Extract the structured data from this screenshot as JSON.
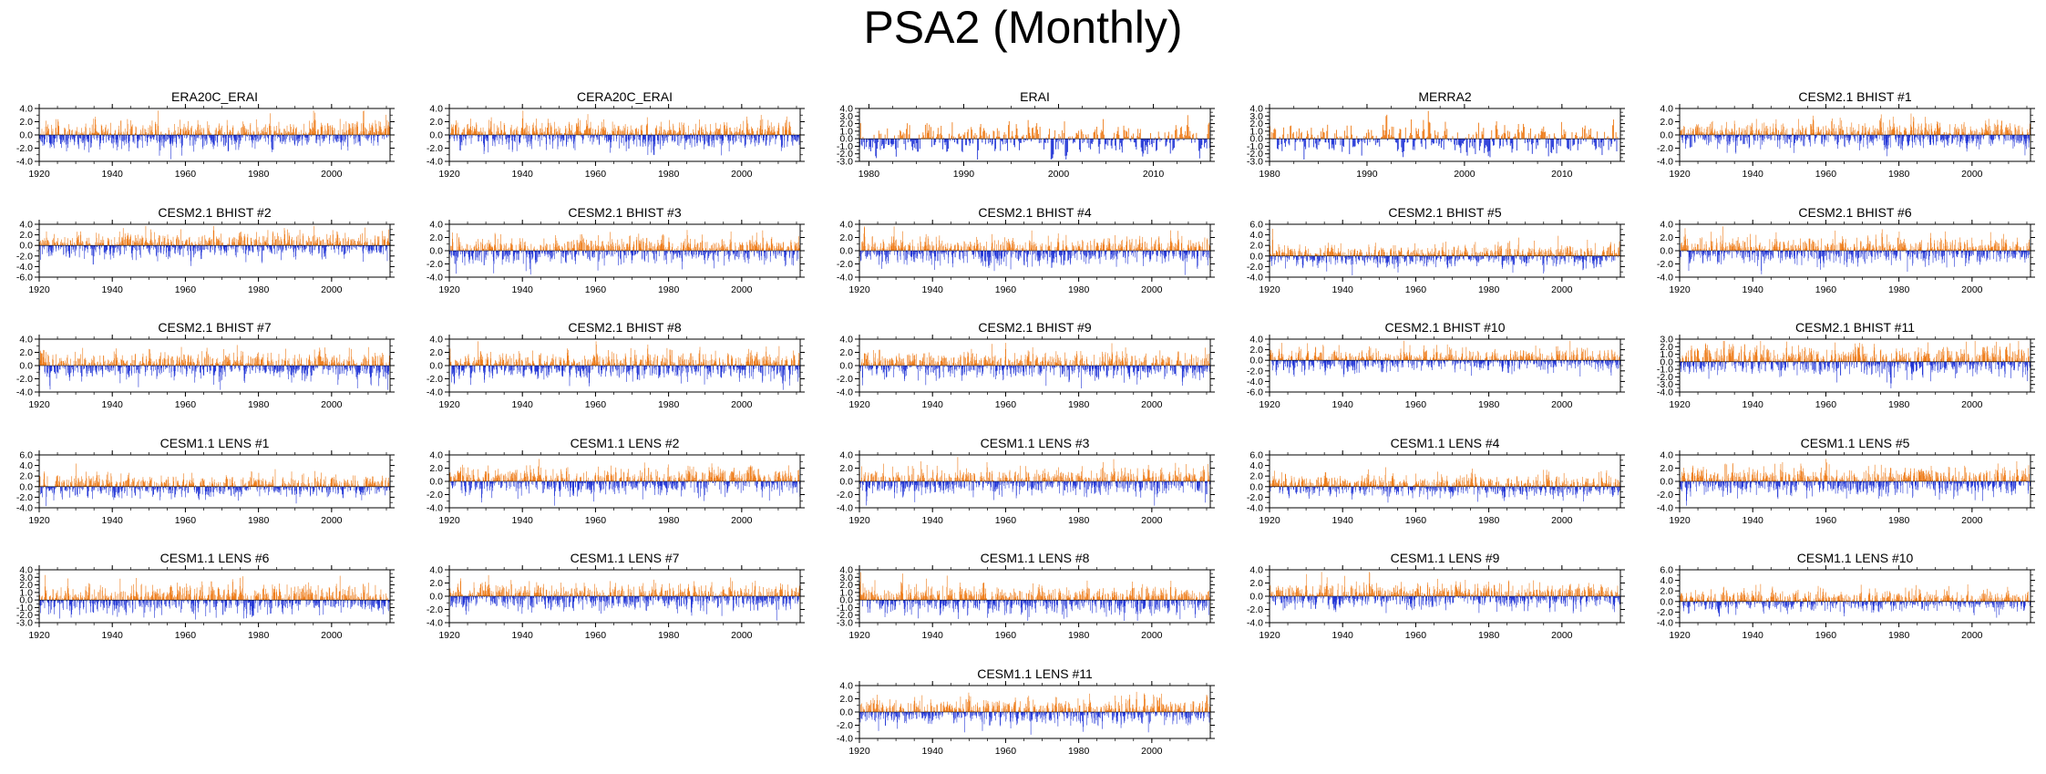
{
  "title": "PSA2 (Monthly)",
  "colors": {
    "positive": "#ee7a16",
    "negative": "#1f33d6",
    "axis": "#000000",
    "background": "#ffffff"
  },
  "chart_data": [
    {
      "type": "bar",
      "title": "ERA20C_ERAI",
      "x_start": 1920,
      "x_end": 2015,
      "xticks": [
        1920,
        1940,
        1960,
        1980,
        2000
      ],
      "yticks": [
        "-4.0",
        "-2.0",
        "0.0",
        "2.0",
        "4.0"
      ],
      "ylim": [
        -4,
        4
      ],
      "amplitude": 1.5,
      "seed": 11
    },
    {
      "type": "bar",
      "title": "CERA20C_ERAI",
      "x_start": 1920,
      "x_end": 2015,
      "xticks": [
        1920,
        1940,
        1960,
        1980,
        2000
      ],
      "yticks": [
        "-4.0",
        "-2.0",
        "0.0",
        "2.0",
        "4.0"
      ],
      "ylim": [
        -4,
        4
      ],
      "amplitude": 1.5,
      "seed": 23
    },
    {
      "type": "bar",
      "title": "ERAI",
      "x_start": 1979,
      "x_end": 2015,
      "xticks": [
        1980,
        1990,
        2000,
        2010
      ],
      "yticks": [
        "-3.0",
        "-2.0",
        "-1.0",
        "0.0",
        "1.0",
        "2.0",
        "3.0",
        "4.0"
      ],
      "ylim": [
        -3,
        4
      ],
      "amplitude": 1.6,
      "seed": 37
    },
    {
      "type": "bar",
      "title": "MERRA2",
      "x_start": 1980,
      "x_end": 2015,
      "xticks": [
        1980,
        1990,
        2000,
        2010
      ],
      "yticks": [
        "-3.0",
        "-2.0",
        "-1.0",
        "0.0",
        "1.0",
        "2.0",
        "3.0",
        "4.0"
      ],
      "ylim": [
        -3,
        4
      ],
      "amplitude": 1.6,
      "seed": 41
    },
    {
      "type": "bar",
      "title": "CESM2.1 BHIST #1",
      "x_start": 1920,
      "x_end": 2015,
      "xticks": [
        1920,
        1940,
        1960,
        1980,
        2000
      ],
      "yticks": [
        "-4.0",
        "-2.0",
        "0.0",
        "2.0",
        "4.0"
      ],
      "ylim": [
        -4,
        4
      ],
      "amplitude": 1.5,
      "seed": 53
    },
    {
      "type": "bar",
      "title": "CESM2.1 BHIST #2",
      "x_start": 1920,
      "x_end": 2015,
      "xticks": [
        1920,
        1940,
        1960,
        1980,
        2000
      ],
      "yticks": [
        "-6.0",
        "-4.0",
        "-2.0",
        "0.0",
        "2.0",
        "4.0"
      ],
      "ylim": [
        -6,
        4
      ],
      "amplitude": 1.8,
      "seed": 61
    },
    {
      "type": "bar",
      "title": "CESM2.1 BHIST #3",
      "x_start": 1920,
      "x_end": 2015,
      "xticks": [
        1920,
        1940,
        1960,
        1980,
        2000
      ],
      "yticks": [
        "-4.0",
        "-2.0",
        "0.0",
        "2.0",
        "4.0"
      ],
      "ylim": [
        -4,
        4
      ],
      "amplitude": 1.5,
      "seed": 71
    },
    {
      "type": "bar",
      "title": "CESM2.1 BHIST #4",
      "x_start": 1920,
      "x_end": 2015,
      "xticks": [
        1920,
        1940,
        1960,
        1980,
        2000
      ],
      "yticks": [
        "-4.0",
        "-2.0",
        "0.0",
        "2.0",
        "4.0"
      ],
      "ylim": [
        -4,
        4
      ],
      "amplitude": 1.5,
      "seed": 83
    },
    {
      "type": "bar",
      "title": "CESM2.1 BHIST #5",
      "x_start": 1920,
      "x_end": 2015,
      "xticks": [
        1920,
        1940,
        1960,
        1980,
        2000
      ],
      "yticks": [
        "-4.0",
        "-2.0",
        "0.0",
        "2.0",
        "4.0",
        "6.0"
      ],
      "ylim": [
        -4,
        6
      ],
      "amplitude": 1.5,
      "seed": 97
    },
    {
      "type": "bar",
      "title": "CESM2.1 BHIST #6",
      "x_start": 1920,
      "x_end": 2015,
      "xticks": [
        1920,
        1940,
        1960,
        1980,
        2000
      ],
      "yticks": [
        "-4.0",
        "-2.0",
        "0.0",
        "2.0",
        "4.0"
      ],
      "ylim": [
        -4,
        4
      ],
      "amplitude": 1.5,
      "seed": 101
    },
    {
      "type": "bar",
      "title": "CESM2.1 BHIST #7",
      "x_start": 1920,
      "x_end": 2015,
      "xticks": [
        1920,
        1940,
        1960,
        1980,
        2000
      ],
      "yticks": [
        "-4.0",
        "-2.0",
        "0.0",
        "2.0",
        "4.0"
      ],
      "ylim": [
        -4,
        4
      ],
      "amplitude": 1.5,
      "seed": 113
    },
    {
      "type": "bar",
      "title": "CESM2.1 BHIST #8",
      "x_start": 1920,
      "x_end": 2015,
      "xticks": [
        1920,
        1940,
        1960,
        1980,
        2000
      ],
      "yticks": [
        "-4.0",
        "-2.0",
        "0.0",
        "2.0",
        "4.0"
      ],
      "ylim": [
        -4,
        4
      ],
      "amplitude": 1.5,
      "seed": 127
    },
    {
      "type": "bar",
      "title": "CESM2.1 BHIST #9",
      "x_start": 1920,
      "x_end": 2015,
      "xticks": [
        1920,
        1940,
        1960,
        1980,
        2000
      ],
      "yticks": [
        "-4.0",
        "-2.0",
        "0.0",
        "2.0",
        "4.0"
      ],
      "ylim": [
        -4,
        4
      ],
      "amplitude": 1.5,
      "seed": 131
    },
    {
      "type": "bar",
      "title": "CESM2.1 BHIST #10",
      "x_start": 1920,
      "x_end": 2015,
      "xticks": [
        1920,
        1940,
        1960,
        1980,
        2000
      ],
      "yticks": [
        "-6.0",
        "-4.0",
        "-2.0",
        "0.0",
        "2.0",
        "4.0"
      ],
      "ylim": [
        -6,
        4
      ],
      "amplitude": 1.6,
      "seed": 139
    },
    {
      "type": "bar",
      "title": "CESM2.1 BHIST #11",
      "x_start": 1920,
      "x_end": 2015,
      "xticks": [
        1920,
        1940,
        1960,
        1980,
        2000
      ],
      "yticks": [
        "-4.0",
        "-3.0",
        "-2.0",
        "-1.0",
        "0.0",
        "1.0",
        "2.0",
        "3.0"
      ],
      "ylim": [
        -4,
        3
      ],
      "amplitude": 1.5,
      "seed": 149
    },
    {
      "type": "bar",
      "title": "CESM1.1 LENS #1",
      "x_start": 1920,
      "x_end": 2015,
      "xticks": [
        1920,
        1940,
        1960,
        1980,
        2000
      ],
      "yticks": [
        "-4.0",
        "-2.0",
        "0.0",
        "2.0",
        "4.0",
        "6.0"
      ],
      "ylim": [
        -4,
        6
      ],
      "amplitude": 1.5,
      "seed": 151
    },
    {
      "type": "bar",
      "title": "CESM1.1 LENS #2",
      "x_start": 1920,
      "x_end": 2015,
      "xticks": [
        1920,
        1940,
        1960,
        1980,
        2000
      ],
      "yticks": [
        "-4.0",
        "-2.0",
        "0.0",
        "2.0",
        "4.0"
      ],
      "ylim": [
        -4,
        4
      ],
      "amplitude": 1.5,
      "seed": 163
    },
    {
      "type": "bar",
      "title": "CESM1.1 LENS #3",
      "x_start": 1920,
      "x_end": 2015,
      "xticks": [
        1920,
        1940,
        1960,
        1980,
        2000
      ],
      "yticks": [
        "-4.0",
        "-2.0",
        "0.0",
        "2.0",
        "4.0"
      ],
      "ylim": [
        -4,
        4
      ],
      "amplitude": 1.5,
      "seed": 173
    },
    {
      "type": "bar",
      "title": "CESM1.1 LENS #4",
      "x_start": 1920,
      "x_end": 2015,
      "xticks": [
        1920,
        1940,
        1960,
        1980,
        2000
      ],
      "yticks": [
        "-4.0",
        "-2.0",
        "0.0",
        "2.0",
        "4.0",
        "6.0"
      ],
      "ylim": [
        -4,
        6
      ],
      "amplitude": 1.5,
      "seed": 181
    },
    {
      "type": "bar",
      "title": "CESM1.1 LENS #5",
      "x_start": 1920,
      "x_end": 2015,
      "xticks": [
        1920,
        1940,
        1960,
        1980,
        2000
      ],
      "yticks": [
        "-4.0",
        "-2.0",
        "0.0",
        "2.0",
        "4.0"
      ],
      "ylim": [
        -4,
        4
      ],
      "amplitude": 1.5,
      "seed": 191
    },
    {
      "type": "bar",
      "title": "CESM1.1 LENS #6",
      "x_start": 1920,
      "x_end": 2015,
      "xticks": [
        1920,
        1940,
        1960,
        1980,
        2000
      ],
      "yticks": [
        "-3.0",
        "-2.0",
        "-1.0",
        "0.0",
        "1.0",
        "2.0",
        "3.0",
        "4.0"
      ],
      "ylim": [
        -3,
        4
      ],
      "amplitude": 1.4,
      "seed": 193
    },
    {
      "type": "bar",
      "title": "CESM1.1 LENS #7",
      "x_start": 1920,
      "x_end": 2015,
      "xticks": [
        1920,
        1940,
        1960,
        1980,
        2000
      ],
      "yticks": [
        "-4.0",
        "-2.0",
        "0.0",
        "2.0",
        "4.0"
      ],
      "ylim": [
        -4,
        4
      ],
      "amplitude": 1.5,
      "seed": 197
    },
    {
      "type": "bar",
      "title": "CESM1.1 LENS #8",
      "x_start": 1920,
      "x_end": 2015,
      "xticks": [
        1920,
        1940,
        1960,
        1980,
        2000
      ],
      "yticks": [
        "-3.0",
        "-2.0",
        "-1.0",
        "0.0",
        "1.0",
        "2.0",
        "3.0",
        "4.0"
      ],
      "ylim": [
        -3,
        4
      ],
      "amplitude": 1.4,
      "seed": 199
    },
    {
      "type": "bar",
      "title": "CESM1.1 LENS #9",
      "x_start": 1920,
      "x_end": 2015,
      "xticks": [
        1920,
        1940,
        1960,
        1980,
        2000
      ],
      "yticks": [
        "-4.0",
        "-2.0",
        "0.0",
        "2.0",
        "4.0"
      ],
      "ylim": [
        -4,
        4
      ],
      "amplitude": 1.5,
      "seed": 211
    },
    {
      "type": "bar",
      "title": "CESM1.1 LENS #10",
      "x_start": 1920,
      "x_end": 2015,
      "xticks": [
        1920,
        1940,
        1960,
        1980,
        2000
      ],
      "yticks": [
        "-4.0",
        "-2.0",
        "0.0",
        "2.0",
        "4.0",
        "6.0"
      ],
      "ylim": [
        -4,
        6
      ],
      "amplitude": 1.5,
      "seed": 223
    },
    {
      "type": "bar",
      "title": "CESM1.1 LENS #11",
      "x_start": 1920,
      "x_end": 2015,
      "xticks": [
        1920,
        1940,
        1960,
        1980,
        2000
      ],
      "yticks": [
        "-4.0",
        "-2.0",
        "0.0",
        "2.0",
        "4.0"
      ],
      "ylim": [
        -4,
        4
      ],
      "amplitude": 1.5,
      "seed": 227
    }
  ]
}
